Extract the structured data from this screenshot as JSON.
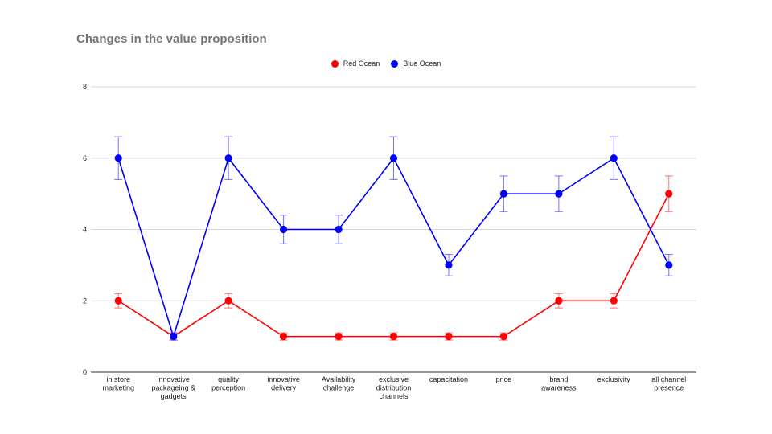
{
  "chart_data": {
    "type": "line",
    "title": "Changes in the value proposition",
    "xlabel": "",
    "ylabel": "",
    "ylim": [
      0,
      8
    ],
    "yticks": [
      0,
      2,
      4,
      6,
      8
    ],
    "grid": true,
    "legend_position": "top-center",
    "categories": [
      [
        "in store",
        "marketing"
      ],
      [
        "innovative",
        "packageing &",
        "gadgets"
      ],
      [
        "quality",
        "perception"
      ],
      [
        "innovative",
        "delivery"
      ],
      [
        "Availability",
        "challenge"
      ],
      [
        "exclusive",
        "distribution",
        "channels"
      ],
      [
        "capacitation"
      ],
      [
        "price"
      ],
      [
        "brand",
        "awareness"
      ],
      [
        "exclusivity"
      ],
      [
        "all channel",
        "presence"
      ]
    ],
    "series": [
      {
        "name": "Red Ocean",
        "color": "#ff0000",
        "values": [
          2,
          1,
          2,
          1,
          1,
          1,
          1,
          1,
          2,
          2,
          5
        ],
        "error_bars": [
          0.2,
          0.1,
          0.2,
          0.1,
          0.1,
          0.1,
          0.1,
          0.1,
          0.2,
          0.2,
          0.5
        ]
      },
      {
        "name": "Blue Ocean",
        "color": "#0000ff",
        "values": [
          6,
          1,
          6,
          4,
          4,
          6,
          3,
          5,
          5,
          6,
          3
        ],
        "error_bars": [
          0.6,
          0.1,
          0.6,
          0.4,
          0.4,
          0.6,
          0.3,
          0.5,
          0.5,
          0.6,
          0.3
        ]
      }
    ]
  }
}
